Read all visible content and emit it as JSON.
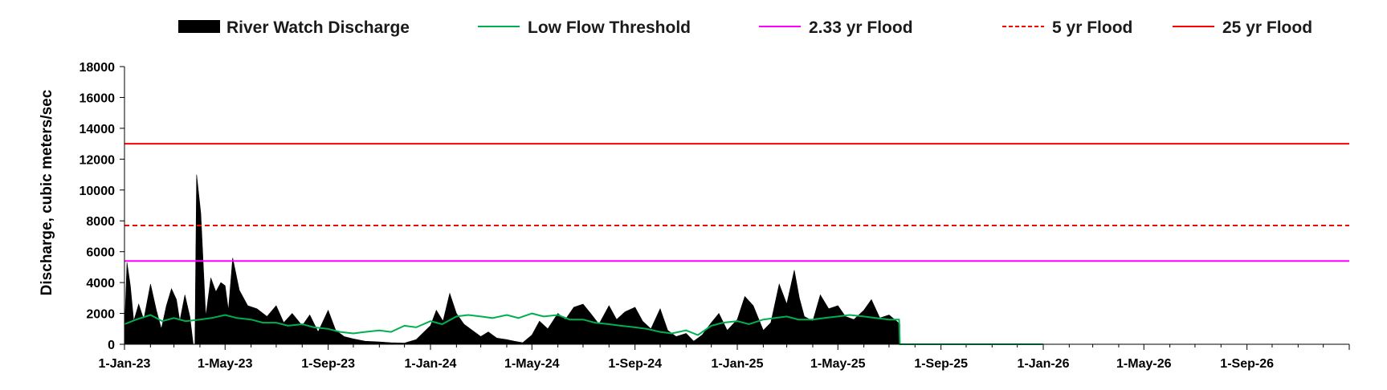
{
  "chart_data": {
    "type": "area",
    "title": "",
    "xlabel": "",
    "ylabel": "Discharge, cubic meters/sec",
    "ylim": [
      0,
      18000
    ],
    "yticks": [
      "0",
      "2000",
      "4000",
      "6000",
      "8000",
      "10000",
      "12000",
      "14000",
      "16000",
      "18000"
    ],
    "xlim": [
      "2023-01-01",
      "2027-01-01"
    ],
    "xticks": [
      "1-Jan-23",
      "1-May-23",
      "1-Sep-23",
      "1-Jan-24",
      "1-May-24",
      "1-Sep-24",
      "1-Jan-25",
      "1-May-25",
      "1-Sep-25",
      "1-Jan-26",
      "1-May-26",
      "1-Sep-26"
    ],
    "grid": false,
    "legend_position": "top",
    "legend": [
      "River Watch Discharge",
      "Low Flow Threshold",
      "2.33 yr Flood",
      "5 yr Flood",
      "25 yr Flood"
    ],
    "series": [
      {
        "name": "River Watch Discharge",
        "kind": "area",
        "color": "#000000",
        "x": [
          "2023-01-01",
          "2023-01-04",
          "2023-01-08",
          "2023-01-12",
          "2023-01-18",
          "2023-01-24",
          "2023-02-01",
          "2023-02-08",
          "2023-02-14",
          "2023-02-20",
          "2023-02-26",
          "2023-03-04",
          "2023-03-08",
          "2023-03-14",
          "2023-03-20",
          "2023-03-24",
          "2023-03-26",
          "2023-03-28",
          "2023-04-02",
          "2023-04-08",
          "2023-04-14",
          "2023-04-20",
          "2023-04-26",
          "2023-05-01",
          "2023-05-05",
          "2023-05-10",
          "2023-05-18",
          "2023-05-28",
          "2023-06-08",
          "2023-06-20",
          "2023-07-01",
          "2023-07-10",
          "2023-07-20",
          "2023-08-01",
          "2023-08-10",
          "2023-08-20",
          "2023-09-01",
          "2023-09-10",
          "2023-09-20",
          "2023-10-01",
          "2023-10-15",
          "2023-11-01",
          "2023-11-15",
          "2023-12-01",
          "2023-12-15",
          "2024-01-01",
          "2024-01-08",
          "2024-01-16",
          "2024-01-24",
          "2024-02-01",
          "2024-02-10",
          "2024-02-20",
          "2024-03-01",
          "2024-03-10",
          "2024-03-20",
          "2024-04-01",
          "2024-04-10",
          "2024-04-20",
          "2024-05-01",
          "2024-05-10",
          "2024-05-20",
          "2024-06-01",
          "2024-06-10",
          "2024-06-20",
          "2024-07-01",
          "2024-07-10",
          "2024-07-20",
          "2024-08-01",
          "2024-08-10",
          "2024-08-20",
          "2024-09-01",
          "2024-09-10",
          "2024-09-20",
          "2024-10-01",
          "2024-10-10",
          "2024-10-20",
          "2024-11-01",
          "2024-11-10",
          "2024-11-20",
          "2024-12-01",
          "2024-12-10",
          "2024-12-20",
          "2025-01-01",
          "2025-01-10",
          "2025-01-20",
          "2025-02-01",
          "2025-02-10",
          "2025-02-20",
          "2025-03-01",
          "2025-03-10",
          "2025-03-16",
          "2025-03-22",
          "2025-04-01",
          "2025-04-10",
          "2025-04-20",
          "2025-05-01",
          "2025-05-10",
          "2025-05-20",
          "2025-06-01",
          "2025-06-10",
          "2025-06-20",
          "2025-07-01",
          "2025-07-10",
          "2025-07-14"
        ],
        "y": [
          800,
          5300,
          3800,
          1500,
          2600,
          1600,
          3900,
          2200,
          1000,
          2500,
          3600,
          2900,
          1500,
          3200,
          1800,
          0,
          0,
          11000,
          8500,
          1800,
          4300,
          3400,
          4000,
          3800,
          2200,
          5600,
          3500,
          2500,
          2300,
          1800,
          2500,
          1400,
          2000,
          1200,
          1900,
          800,
          2200,
          900,
          500,
          350,
          200,
          150,
          100,
          80,
          300,
          1200,
          2200,
          1500,
          3300,
          2000,
          1300,
          900,
          500,
          800,
          400,
          300,
          200,
          100,
          600,
          1500,
          1000,
          2000,
          1600,
          2400,
          2600,
          2000,
          1300,
          2500,
          1600,
          2100,
          2400,
          1500,
          1000,
          2300,
          900,
          500,
          700,
          200,
          600,
          1400,
          2000,
          900,
          1600,
          3100,
          2500,
          900,
          1400,
          3900,
          2600,
          4800,
          3000,
          1800,
          1500,
          3200,
          2300,
          2500,
          1800,
          1600,
          2200,
          2900,
          1700,
          1900,
          1500,
          1300
        ]
      },
      {
        "name": "Low Flow Threshold",
        "kind": "line",
        "color": "#00b050",
        "x": [
          "2023-01-01",
          "2023-01-15",
          "2023-02-01",
          "2023-02-15",
          "2023-03-01",
          "2023-03-15",
          "2023-04-01",
          "2023-04-15",
          "2023-05-01",
          "2023-05-15",
          "2023-06-01",
          "2023-06-15",
          "2023-07-01",
          "2023-07-15",
          "2023-08-01",
          "2023-08-15",
          "2023-09-01",
          "2023-09-15",
          "2023-10-01",
          "2023-10-15",
          "2023-11-01",
          "2023-11-15",
          "2023-12-01",
          "2023-12-15",
          "2024-01-01",
          "2024-01-15",
          "2024-02-01",
          "2024-02-15",
          "2024-03-01",
          "2024-03-15",
          "2024-04-01",
          "2024-04-15",
          "2024-05-01",
          "2024-05-15",
          "2024-06-01",
          "2024-06-15",
          "2024-07-01",
          "2024-07-15",
          "2024-08-01",
          "2024-08-15",
          "2024-09-01",
          "2024-09-15",
          "2024-10-01",
          "2024-10-15",
          "2024-11-01",
          "2024-11-15",
          "2024-12-01",
          "2024-12-15",
          "2025-01-01",
          "2025-01-15",
          "2025-02-01",
          "2025-02-15",
          "2025-03-01",
          "2025-03-15",
          "2025-04-01",
          "2025-04-15",
          "2025-05-01",
          "2025-05-15",
          "2025-06-01",
          "2025-06-15",
          "2025-07-01",
          "2025-07-13",
          "2025-07-14",
          "2026-01-01"
        ],
        "y": [
          1300,
          1600,
          1900,
          1500,
          1700,
          1500,
          1600,
          1700,
          1900,
          1700,
          1600,
          1400,
          1400,
          1200,
          1300,
          1100,
          1000,
          800,
          700,
          800,
          900,
          800,
          1200,
          1100,
          1500,
          1300,
          1800,
          1900,
          1800,
          1700,
          1900,
          1700,
          2000,
          1800,
          1900,
          1600,
          1600,
          1400,
          1300,
          1200,
          1100,
          1000,
          800,
          700,
          900,
          600,
          1200,
          1400,
          1500,
          1300,
          1600,
          1700,
          1800,
          1600,
          1600,
          1700,
          1800,
          1900,
          1800,
          1700,
          1600,
          1600,
          0,
          0
        ]
      },
      {
        "name": "2.33 yr Flood",
        "kind": "hline",
        "color": "#ff00ff",
        "value": 5400
      },
      {
        "name": "5 yr Flood",
        "kind": "hline-dashed",
        "color": "#ff0000",
        "value": 7700
      },
      {
        "name": "25 yr Flood",
        "kind": "hline",
        "color": "#ff0000",
        "value": 13000
      }
    ]
  }
}
